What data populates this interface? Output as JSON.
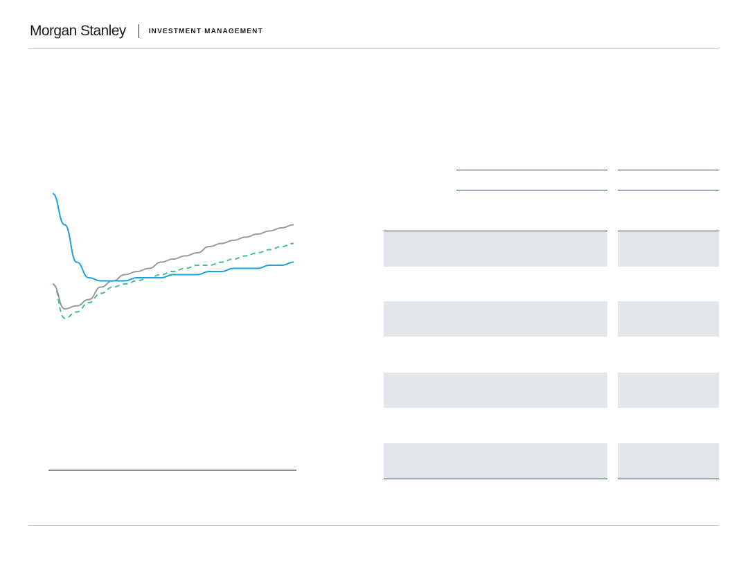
{
  "header": {
    "brand_name": "Morgan Stanley",
    "brand_sub": "INVESTMENT MANAGEMENT"
  },
  "colors": {
    "series_blue": "#1aa0dc",
    "series_gray": "#9a9a9d",
    "series_green_dashed": "#3fbf95",
    "table_row_fill": "#e3e7eb",
    "table_rule": "#2f4a63"
  },
  "chart_data": {
    "type": "line",
    "title": "",
    "xlabel": "",
    "ylabel": "",
    "grid": false,
    "x": [
      0,
      1,
      2,
      3,
      4,
      5,
      6,
      7,
      8,
      9,
      10,
      11,
      12,
      13,
      14,
      15,
      16,
      17,
      18,
      19,
      20
    ],
    "series": [
      {
        "style": "solid",
        "color": "#1aa0dc",
        "values": [
          8.9,
          7.9,
          6.7,
          6.2,
          6.1,
          6.1,
          6.1,
          6.2,
          6.2,
          6.2,
          6.3,
          6.3,
          6.3,
          6.4,
          6.4,
          6.5,
          6.5,
          6.5,
          6.6,
          6.6,
          6.7
        ]
      },
      {
        "style": "solid",
        "color": "#9a9a9d",
        "values": [
          6.0,
          5.2,
          5.3,
          5.5,
          5.9,
          6.1,
          6.3,
          6.4,
          6.5,
          6.7,
          6.8,
          6.9,
          7.0,
          7.2,
          7.3,
          7.4,
          7.5,
          7.6,
          7.7,
          7.8,
          7.9
        ]
      },
      {
        "style": "dashed",
        "color": "#3fbf95",
        "values": [
          6.0,
          4.9,
          5.1,
          5.4,
          5.7,
          5.9,
          6.0,
          6.1,
          6.2,
          6.3,
          6.4,
          6.5,
          6.6,
          6.6,
          6.7,
          6.8,
          6.9,
          7.0,
          7.1,
          7.2,
          7.3
        ]
      }
    ]
  }
}
